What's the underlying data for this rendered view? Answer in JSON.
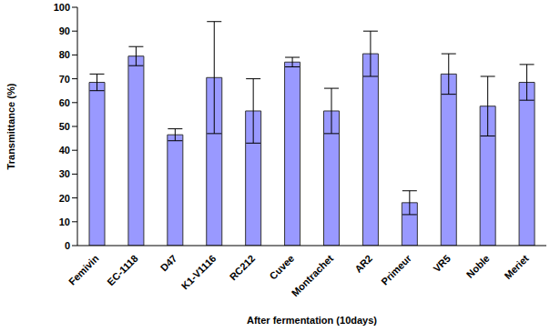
{
  "chart_data": {
    "type": "bar",
    "categories": [
      "Femivin",
      "EC-1118",
      "D47",
      "K1-V1116",
      "RC212",
      "Cuvee",
      "Montrachet",
      "AR2",
      "Primeur",
      "VR5",
      "Noble",
      "Meriet"
    ],
    "values": [
      68.5,
      79.5,
      46.5,
      70.5,
      56.5,
      77,
      56.5,
      80.5,
      18,
      72,
      58.5,
      68.5
    ],
    "errors": [
      3.5,
      4,
      2.5,
      23.5,
      13.5,
      2,
      9.5,
      9.5,
      5,
      8.5,
      12.5,
      7.5
    ],
    "color": "#9999ff",
    "ylim": [
      0,
      100
    ],
    "yticks": [
      0,
      10,
      20,
      30,
      40,
      50,
      60,
      70,
      80,
      90,
      100
    ],
    "xlabel": "After fermentation (10days)",
    "ylabel": "Transmittance (%)",
    "grid": false
  }
}
